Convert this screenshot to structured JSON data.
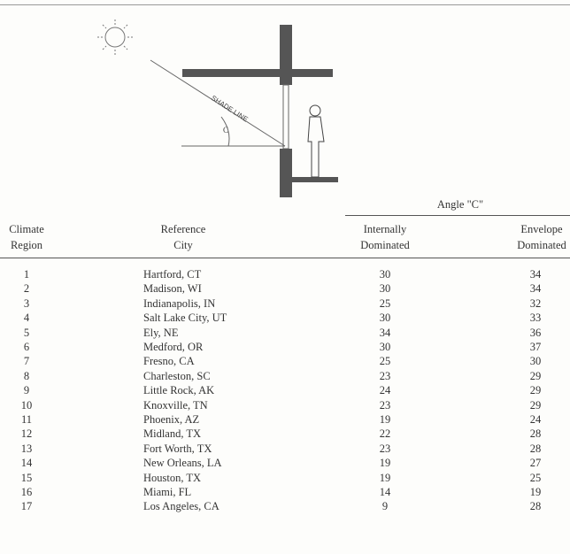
{
  "diagram": {
    "shade_label": "SHADE LINE",
    "angle_label": "C"
  },
  "table": {
    "group_header": "Angle \"C\"",
    "columns": [
      [
        "Climate",
        "Region"
      ],
      [
        "Reference",
        "City"
      ],
      [
        "Internally",
        "Dominated"
      ],
      [
        "Envelope",
        "Dominated"
      ]
    ],
    "rows": [
      [
        1,
        "Hartford, CT",
        30,
        34
      ],
      [
        2,
        "Madison, WI",
        30,
        34
      ],
      [
        3,
        "Indianapolis, IN",
        25,
        32
      ],
      [
        4,
        "Salt Lake City, UT",
        30,
        33
      ],
      [
        5,
        "Ely, NE",
        34,
        36
      ],
      [
        6,
        "Medford, OR",
        30,
        37
      ],
      [
        7,
        "Fresno, CA",
        25,
        30
      ],
      [
        8,
        "Charleston, SC",
        23,
        29
      ],
      [
        9,
        "Little Rock, AK",
        24,
        29
      ],
      [
        10,
        "Knoxville, TN",
        23,
        29
      ],
      [
        11,
        "Phoenix, AZ",
        19,
        24
      ],
      [
        12,
        "Midland, TX",
        22,
        28
      ],
      [
        13,
        "Fort Worth, TX",
        23,
        28
      ],
      [
        14,
        "New Orleans, LA",
        19,
        27
      ],
      [
        15,
        "Houston, TX",
        19,
        25
      ],
      [
        16,
        "Miami, FL",
        14,
        19
      ],
      [
        17,
        "Los Angeles, CA",
        9,
        28
      ]
    ]
  }
}
